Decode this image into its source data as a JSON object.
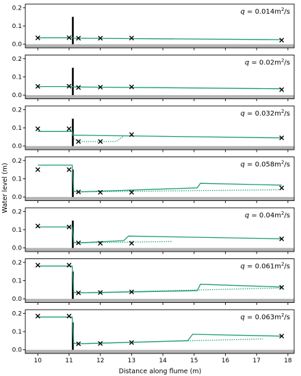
{
  "figure": {
    "xlabel": "Distance along flume (m)",
    "ylabel": "Water level (m)"
  },
  "style": {
    "model_color": "#1a9a78",
    "obs_color": "#000000",
    "bed_color": "#b4b4b4",
    "weir_color": "#000000"
  },
  "chart_data": [
    {
      "type": "line",
      "label_var": "q",
      "label_value": " = 0.014m",
      "label_exp": "2",
      "label_unit": "/s",
      "xlim": [
        9.6,
        18.2
      ],
      "ylim": [
        -0.02,
        0.22
      ],
      "yticks": [
        0.0,
        0.1,
        0.2
      ],
      "grid": false,
      "weir": {
        "x": 11.12,
        "y_top": 0.15
      },
      "series": [
        {
          "style": "solid",
          "points": [
            [
              10,
              0.035
            ],
            [
              11.1,
              0.035
            ],
            [
              11.15,
              0.033
            ],
            [
              17.8,
              0.025
            ]
          ]
        }
      ],
      "observations": [
        [
          10,
          0.035
        ],
        [
          11,
          0.036
        ],
        [
          11.3,
          0.033
        ],
        [
          12,
          0.033
        ],
        [
          13,
          0.034
        ],
        [
          17.8,
          0.022
        ]
      ]
    },
    {
      "type": "line",
      "label_var": "q",
      "label_value": " = 0.02m",
      "label_exp": "2",
      "label_unit": "/s",
      "xlim": [
        9.6,
        18.2
      ],
      "ylim": [
        -0.02,
        0.22
      ],
      "yticks": [
        0.0,
        0.1,
        0.2
      ],
      "grid": false,
      "weir": {
        "x": 11.12,
        "y_top": 0.15
      },
      "series": [
        {
          "style": "solid",
          "points": [
            [
              10,
              0.047
            ],
            [
              11.1,
              0.047
            ],
            [
              11.15,
              0.045
            ],
            [
              17.8,
              0.035
            ]
          ]
        }
      ],
      "observations": [
        [
          10,
          0.048
        ],
        [
          11,
          0.049
        ],
        [
          11.3,
          0.042
        ],
        [
          12,
          0.044
        ],
        [
          13,
          0.045
        ],
        [
          17.8,
          0.03
        ]
      ]
    },
    {
      "type": "line",
      "label_var": "q",
      "label_value": " = 0.032m",
      "label_exp": "2",
      "label_unit": "/s",
      "xlim": [
        9.6,
        18.2
      ],
      "ylim": [
        -0.02,
        0.22
      ],
      "yticks": [
        0.0,
        0.1,
        0.2
      ],
      "grid": false,
      "weir": {
        "x": 11.12,
        "y_top": 0.15
      },
      "series": [
        {
          "style": "solid",
          "points": [
            [
              10,
              0.08
            ],
            [
              11.1,
              0.08
            ],
            [
              11.12,
              0.06
            ],
            [
              17.8,
              0.045
            ]
          ]
        },
        {
          "style": "dotted",
          "points": [
            [
              11.15,
              0.04
            ],
            [
              11.3,
              0.025
            ],
            [
              12.5,
              0.025
            ],
            [
              12.75,
              0.055
            ]
          ]
        }
      ],
      "observations": [
        [
          10,
          0.095
        ],
        [
          11,
          0.095
        ],
        [
          11.3,
          0.025
        ],
        [
          12,
          0.025
        ],
        [
          13,
          0.063
        ],
        [
          17.8,
          0.045
        ]
      ]
    },
    {
      "type": "line",
      "label_var": "q",
      "label_value": " = 0.058m",
      "label_exp": "2",
      "label_unit": "/s",
      "xlim": [
        9.6,
        18.2
      ],
      "ylim": [
        -0.02,
        0.22
      ],
      "yticks": [
        0.0,
        0.1,
        0.2
      ],
      "grid": false,
      "weir": {
        "x": 11.12,
        "y_top": 0.15
      },
      "series": [
        {
          "style": "solid",
          "points": [
            [
              10,
              0.175
            ],
            [
              11.1,
              0.175
            ],
            [
              11.15,
              0.03
            ],
            [
              11.3,
              0.028
            ],
            [
              15.1,
              0.05
            ],
            [
              15.2,
              0.075
            ],
            [
              17.8,
              0.065
            ]
          ]
        },
        {
          "style": "dotted",
          "points": [
            [
              11.3,
              0.028
            ],
            [
              17.8,
              0.04
            ]
          ]
        }
      ],
      "observations": [
        [
          10,
          0.15
        ],
        [
          11,
          0.15
        ],
        [
          11.3,
          0.028
        ],
        [
          12,
          0.026
        ],
        [
          13,
          0.026
        ],
        [
          17.8,
          0.05
        ]
      ]
    },
    {
      "type": "line",
      "label_var": "q",
      "label_value": " = 0.04m",
      "label_exp": "2",
      "label_unit": "/s",
      "xlim": [
        9.6,
        18.2
      ],
      "ylim": [
        -0.02,
        0.22
      ],
      "yticks": [
        0.0,
        0.1,
        0.2
      ],
      "grid": false,
      "weir": {
        "x": 11.12,
        "y_top": 0.15
      },
      "series": [
        {
          "style": "solid",
          "points": [
            [
              10,
              0.115
            ],
            [
              11.1,
              0.115
            ],
            [
              11.15,
              0.03
            ],
            [
              11.3,
              0.028
            ],
            [
              12.75,
              0.04
            ],
            [
              12.9,
              0.065
            ],
            [
              17.8,
              0.05
            ]
          ]
        },
        {
          "style": "dotted",
          "points": [
            [
              11.3,
              0.028
            ],
            [
              14.3,
              0.035
            ]
          ]
        }
      ],
      "observations": [
        [
          10,
          0.12
        ],
        [
          11,
          0.115
        ],
        [
          11.3,
          0.028
        ],
        [
          12,
          0.026
        ],
        [
          13,
          0.026
        ],
        [
          17.8,
          0.05
        ]
      ]
    },
    {
      "type": "line",
      "label_var": "q",
      "label_value": " = 0.061m",
      "label_exp": "2",
      "label_unit": "/s",
      "xlim": [
        9.6,
        18.2
      ],
      "ylim": [
        -0.02,
        0.22
      ],
      "yticks": [
        0.0,
        0.1,
        0.2
      ],
      "grid": false,
      "weir": {
        "x": 11.12,
        "y_top": 0.15
      },
      "series": [
        {
          "style": "solid",
          "points": [
            [
              10,
              0.18
            ],
            [
              11.1,
              0.18
            ],
            [
              11.15,
              0.035
            ],
            [
              11.3,
              0.033
            ],
            [
              15.1,
              0.045
            ],
            [
              15.2,
              0.08
            ],
            [
              17.8,
              0.065
            ]
          ]
        },
        {
          "style": "dotted",
          "points": [
            [
              11.3,
              0.033
            ],
            [
              17.8,
              0.06
            ]
          ]
        }
      ],
      "observations": [
        [
          10,
          0.185
        ],
        [
          11,
          0.185
        ],
        [
          11.3,
          0.033
        ],
        [
          12,
          0.035
        ],
        [
          13,
          0.038
        ],
        [
          17.8,
          0.063
        ]
      ]
    },
    {
      "type": "line",
      "label_var": "q",
      "label_value": " = 0.063m",
      "label_exp": "2",
      "label_unit": "/s",
      "xlim": [
        9.6,
        18.2
      ],
      "ylim": [
        -0.02,
        0.22
      ],
      "yticks": [
        0.0,
        0.1,
        0.2
      ],
      "xticks": [
        10,
        11,
        12,
        13,
        14,
        15,
        16,
        17,
        18
      ],
      "grid": false,
      "weir": {
        "x": 11.12,
        "y_top": 0.15
      },
      "series": [
        {
          "style": "solid",
          "points": [
            [
              10,
              0.18
            ],
            [
              11.1,
              0.18
            ],
            [
              11.15,
              0.035
            ],
            [
              11.3,
              0.033
            ],
            [
              14.8,
              0.05
            ],
            [
              14.95,
              0.085
            ],
            [
              17.8,
              0.075
            ]
          ]
        },
        {
          "style": "dotted",
          "points": [
            [
              11.3,
              0.033
            ],
            [
              17.2,
              0.06
            ]
          ]
        }
      ],
      "observations": [
        [
          10,
          0.185
        ],
        [
          11,
          0.185
        ],
        [
          11.3,
          0.033
        ],
        [
          12,
          0.035
        ],
        [
          13,
          0.04
        ],
        [
          17.8,
          0.075
        ]
      ]
    }
  ]
}
